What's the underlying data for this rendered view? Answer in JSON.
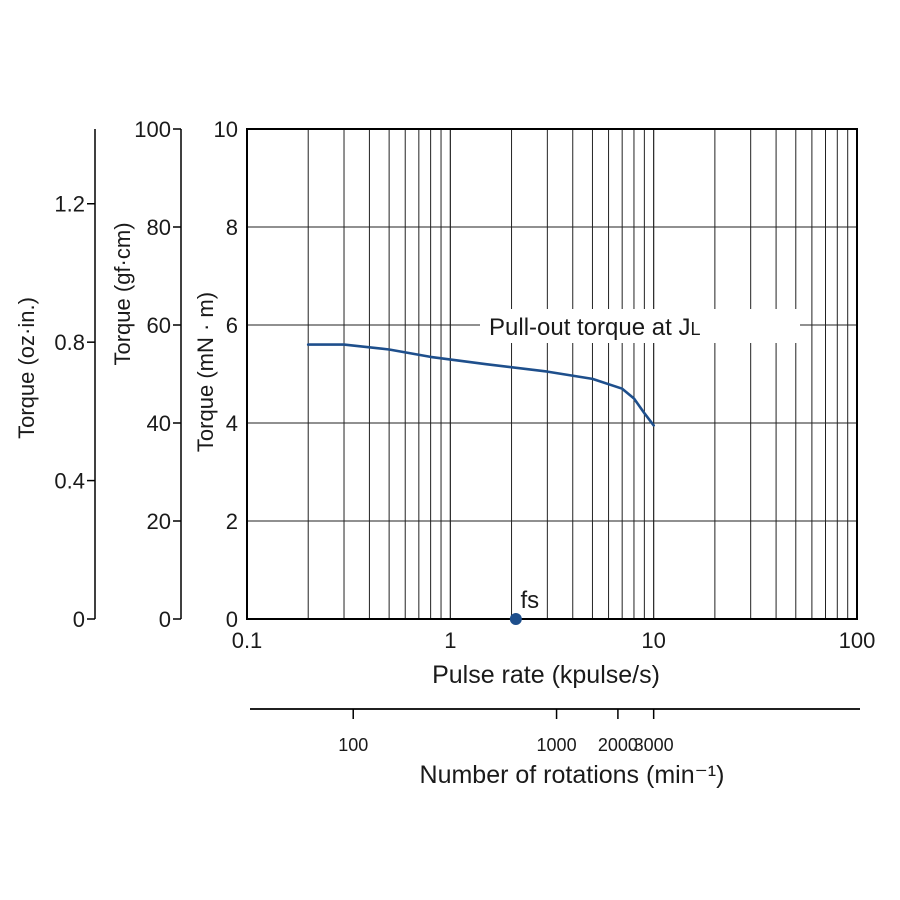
{
  "chart_data": {
    "type": "line",
    "x_axis": {
      "label": "Pulse rate (kpulse/s)",
      "scale": "log",
      "range": [
        0.1,
        100
      ],
      "tick_labels": [
        "0.1",
        "1",
        "10",
        "100"
      ]
    },
    "rotation_axis": {
      "label": "Number of rotations (min⁻¹)",
      "ticks": [
        {
          "label": "100",
          "pulse_rate": 0.333
        },
        {
          "label": "1000",
          "pulse_rate": 3.33
        },
        {
          "label": "2000",
          "pulse_rate": 6.67
        },
        {
          "label": "3000",
          "pulse_rate": 10
        }
      ]
    },
    "y_axes": [
      {
        "label": "Torque (mN · m)",
        "range": [
          0,
          10
        ],
        "tick_values": [
          0,
          2,
          4,
          6,
          8,
          10
        ],
        "tick_labels": [
          "0",
          "2",
          "4",
          "6",
          "8",
          "10"
        ]
      },
      {
        "label": "Torque (gf·cm)",
        "range": [
          0,
          100
        ],
        "tick_values": [
          0,
          20,
          40,
          60,
          80,
          100
        ],
        "tick_labels": [
          "0",
          "20",
          "40",
          "60",
          "80",
          "100"
        ]
      },
      {
        "label": "Torque (oz·in.)",
        "range": [
          0,
          1.416
        ],
        "tick_values": [
          0,
          0.4,
          0.8,
          1.2
        ],
        "tick_labels": [
          "0",
          "0.4",
          "0.8",
          "1.2"
        ]
      }
    ],
    "series": [
      {
        "name": "Pull-out torque at J",
        "name_subscript": "L",
        "color": "#1e4f8c",
        "x": [
          0.2,
          0.3,
          0.5,
          0.8,
          1.5,
          3,
          5,
          7,
          8,
          9,
          10
        ],
        "y": [
          5.6,
          5.6,
          5.5,
          5.35,
          5.2,
          5.05,
          4.9,
          4.7,
          4.5,
          4.2,
          3.95
        ]
      }
    ],
    "annotations": [
      {
        "label": "fs",
        "x": 2.1,
        "y": 0,
        "color": "#1e4f8c"
      }
    ],
    "grid": true
  }
}
